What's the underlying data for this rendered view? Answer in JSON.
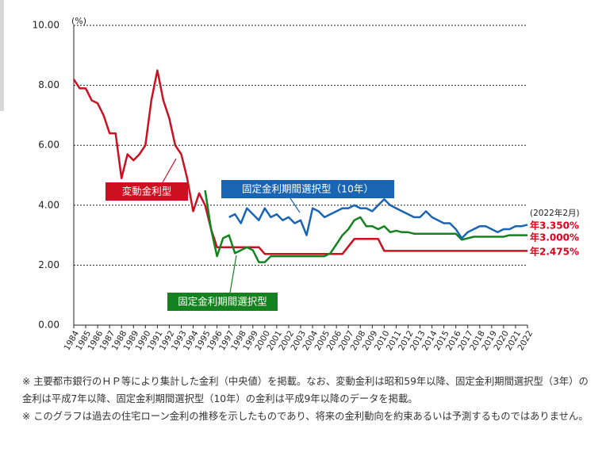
{
  "chart_data": {
    "type": "line",
    "y_unit": "(%)",
    "xlim": [
      1984,
      2022
    ],
    "ylim": [
      0,
      10
    ],
    "yticks": [
      {
        "value": 0,
        "label": "0.00"
      },
      {
        "value": 2,
        "label": "2.00"
      },
      {
        "value": 4,
        "label": "4.00"
      },
      {
        "value": 6,
        "label": "6.00"
      },
      {
        "value": 8,
        "label": "8.00"
      },
      {
        "value": 10,
        "label": "10.00"
      }
    ],
    "xticks": [
      1984,
      1985,
      1986,
      1987,
      1988,
      1989,
      1990,
      1991,
      1992,
      1993,
      1994,
      1995,
      1996,
      1997,
      1998,
      1999,
      2000,
      2001,
      2002,
      2003,
      2004,
      2005,
      2006,
      2007,
      2008,
      2009,
      2010,
      2011,
      2012,
      2013,
      2014,
      2015,
      2016,
      2017,
      2018,
      2019,
      2020,
      2021,
      2022
    ],
    "grid": true,
    "x": [
      1984,
      1984.5,
      1985,
      1985.5,
      1986,
      1986.5,
      1987,
      1987.5,
      1988,
      1988.5,
      1989,
      1989.5,
      1990,
      1990.5,
      1991,
      1991.5,
      1992,
      1992.5,
      1993,
      1993.5,
      1994,
      1994.5,
      1995,
      1995.5,
      1996,
      1996.5,
      1997,
      1997.5,
      1998,
      1998.5,
      1999,
      1999.5,
      2000,
      2000.5,
      2001,
      2001.5,
      2002,
      2002.5,
      2003,
      2003.5,
      2004,
      2004.5,
      2005,
      2005.5,
      2006,
      2006.5,
      2007,
      2007.5,
      2008,
      2008.5,
      2009,
      2009.5,
      2010,
      2010.5,
      2011,
      2011.5,
      2012,
      2012.5,
      2013,
      2013.5,
      2014,
      2014.5,
      2015,
      2015.5,
      2016,
      2016.5,
      2017,
      2017.5,
      2018,
      2018.5,
      2019,
      2019.5,
      2020,
      2020.5,
      2021,
      2021.5,
      2022
    ],
    "series": [
      {
        "name": "変動金利型",
        "color": "#cc1020",
        "end_label": "年2.475%",
        "values": [
          8.2,
          7.9,
          7.9,
          7.5,
          7.4,
          7.0,
          6.4,
          6.4,
          4.9,
          5.7,
          5.5,
          5.7,
          6.0,
          7.5,
          8.5,
          7.5,
          6.9,
          6.0,
          5.7,
          4.9,
          3.8,
          4.4,
          4.0,
          3.2,
          2.6,
          2.6,
          2.6,
          2.6,
          2.6,
          2.6,
          2.6,
          2.6,
          2.375,
          2.375,
          2.375,
          2.375,
          2.375,
          2.375,
          2.375,
          2.375,
          2.375,
          2.375,
          2.375,
          2.375,
          2.375,
          2.375,
          2.625,
          2.875,
          2.875,
          2.875,
          2.875,
          2.875,
          2.475,
          2.475,
          2.475,
          2.475,
          2.475,
          2.475,
          2.475,
          2.475,
          2.475,
          2.475,
          2.475,
          2.475,
          2.475,
          2.475,
          2.475,
          2.475,
          2.475,
          2.475,
          2.475,
          2.475,
          2.475,
          2.475,
          2.475,
          2.475,
          2.475
        ]
      },
      {
        "name": "固定金利期間選択型",
        "color": "#14821e",
        "end_label": "年3.000%",
        "values": [
          null,
          null,
          null,
          null,
          null,
          null,
          null,
          null,
          null,
          null,
          null,
          null,
          null,
          null,
          null,
          null,
          null,
          null,
          null,
          null,
          null,
          null,
          4.5,
          3.2,
          2.3,
          2.9,
          3.0,
          2.4,
          2.5,
          2.6,
          2.5,
          2.1,
          2.1,
          2.3,
          2.3,
          2.3,
          2.3,
          2.3,
          2.3,
          2.3,
          2.3,
          2.3,
          2.3,
          2.4,
          2.7,
          3.0,
          3.2,
          3.5,
          3.6,
          3.3,
          3.3,
          3.2,
          3.3,
          3.1,
          3.15,
          3.1,
          3.1,
          3.05,
          3.05,
          3.05,
          3.05,
          3.05,
          3.05,
          3.05,
          3.05,
          2.85,
          2.9,
          2.95,
          2.95,
          2.95,
          2.95,
          2.95,
          2.95,
          3.0,
          3.0,
          3.0,
          3.0
        ]
      },
      {
        "name": "固定金利期間選択型（10年）",
        "color": "#1a64b4",
        "end_label": "年3.350%",
        "values": [
          null,
          null,
          null,
          null,
          null,
          null,
          null,
          null,
          null,
          null,
          null,
          null,
          null,
          null,
          null,
          null,
          null,
          null,
          null,
          null,
          null,
          null,
          null,
          null,
          null,
          null,
          3.6,
          3.7,
          3.4,
          3.9,
          3.7,
          3.5,
          3.9,
          3.6,
          3.7,
          3.5,
          3.6,
          3.4,
          3.5,
          3.0,
          3.9,
          3.8,
          3.6,
          3.7,
          3.8,
          3.9,
          3.9,
          4.0,
          3.9,
          3.9,
          3.8,
          4.0,
          4.2,
          4.0,
          3.9,
          3.8,
          3.7,
          3.6,
          3.6,
          3.8,
          3.6,
          3.5,
          3.4,
          3.4,
          3.2,
          2.9,
          3.1,
          3.2,
          3.3,
          3.3,
          3.2,
          3.1,
          3.2,
          3.2,
          3.3,
          3.3,
          3.35
        ]
      }
    ],
    "end_label_caption": "(2022年2月)",
    "end_label_color": "#e0001a"
  },
  "notes": [
    "※ 主要都市銀行のＨＰ等により集計した金利（中央値）を掲載。なお、変動金利は昭和59年以降、固定金利期間選択型（3年）の金利は平成7年以降、固定金利期間選択型（10年）の金利は平成9年以降のデータを掲載。",
    "※ このグラフは過去の住宅ローン金利の推移を示したものであり、将来の金利動向を約束あるいは予測するものではありません。"
  ]
}
